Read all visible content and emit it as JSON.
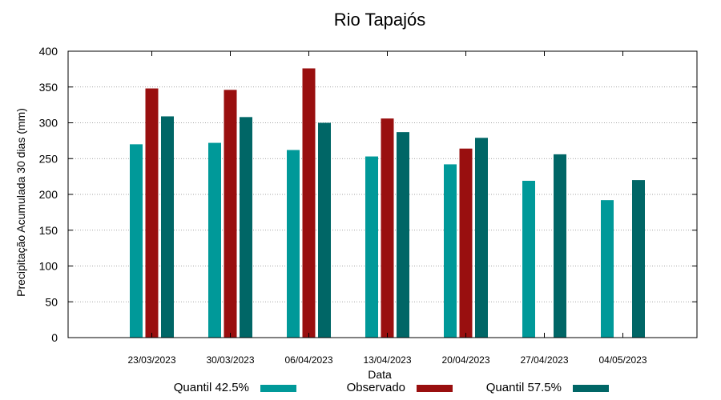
{
  "chart_data": {
    "type": "bar",
    "title": "Rio Tapajós",
    "xlabel": "Data",
    "ylabel": "Precipitação Acumulada 30 dias (mm)",
    "ylim": [
      0,
      400
    ],
    "yticks": [
      0,
      50,
      100,
      150,
      200,
      250,
      300,
      350,
      400
    ],
    "grid": true,
    "legend_position": "bottom",
    "categories": [
      "23/03/2023",
      "30/03/2023",
      "06/04/2023",
      "13/04/2023",
      "20/04/2023",
      "27/04/2023",
      "04/05/2023"
    ],
    "series": [
      {
        "name": "Quantil 42.5%",
        "color": "#009999",
        "values": [
          270,
          272,
          262,
          253,
          242,
          219,
          192
        ]
      },
      {
        "name": "Observado",
        "color": "#990f0f",
        "values": [
          348,
          346,
          376,
          306,
          264,
          null,
          null
        ]
      },
      {
        "name": "Quantil 57.5%",
        "color": "#006666",
        "values": [
          309,
          308,
          300,
          287,
          279,
          256,
          220
        ]
      }
    ]
  }
}
